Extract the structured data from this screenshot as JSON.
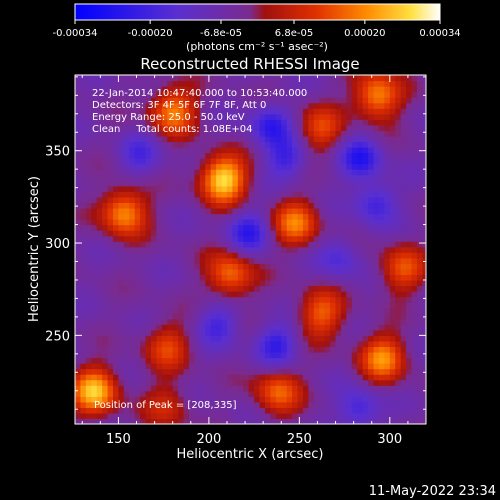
{
  "chart_data": {
    "type": "heatmap",
    "title": "Reconstructed RHESSI Image",
    "xlabel": "Heliocentric X (arcsec)",
    "ylabel": "Heliocentric Y (arcsec)",
    "xlim": [
      126,
      320
    ],
    "ylim": [
      202,
      391
    ],
    "x_ticks": [
      150,
      200,
      250,
      300
    ],
    "y_ticks": [
      250,
      300,
      350
    ],
    "colorbar": {
      "vmin": -0.00034,
      "vmax": 0.00034,
      "tick_values": [
        -0.00034,
        -0.0002,
        -6.8e-05,
        6.8e-05,
        0.0002,
        0.00034
      ],
      "tick_labels": [
        "-0.00034",
        "-0.00020",
        "-6.8e-05",
        "6.8e-05",
        "0.00020",
        "0.00034"
      ],
      "units_label": "(photons cm⁻² s⁻¹ asec⁻²)",
      "colormap": "blue-purple-red-orange-yellow-white"
    },
    "annotations": [
      "22-Jan-2014 10:47:40.000 to 10:53:40.000",
      "Detectors: 3F 4F 5F 6F 7F 8F, Att 0",
      "Energy Range: 25.0 - 50.0 keV",
      "Clean     Total counts: 1.08E+04"
    ],
    "peak_label": "Position of Peak = [208,335]",
    "peak": [
      208,
      335
    ],
    "bright_sources": [
      {
        "x": 208,
        "y": 335,
        "value": 0.00034
      },
      {
        "x": 137,
        "y": 220,
        "value": 0.0003
      },
      {
        "x": 153,
        "y": 317,
        "value": 0.00026
      },
      {
        "x": 248,
        "y": 311,
        "value": 0.00022
      },
      {
        "x": 180,
        "y": 372,
        "value": 0.00024
      },
      {
        "x": 293,
        "y": 380,
        "value": 0.00026
      },
      {
        "x": 212,
        "y": 283,
        "value": 0.00022
      },
      {
        "x": 262,
        "y": 262,
        "value": 0.0002
      },
      {
        "x": 238,
        "y": 220,
        "value": 0.0002
      },
      {
        "x": 296,
        "y": 238,
        "value": 0.00024
      },
      {
        "x": 307,
        "y": 286,
        "value": 0.00018
      },
      {
        "x": 177,
        "y": 244,
        "value": 0.00016
      },
      {
        "x": 262,
        "y": 362,
        "value": 0.00016
      },
      {
        "x": 177,
        "y": 212,
        "value": 0.00012
      }
    ],
    "negative_sources": [
      {
        "x": 234,
        "y": 364,
        "value": -0.00018
      },
      {
        "x": 284,
        "y": 346,
        "value": -0.0002
      },
      {
        "x": 243,
        "y": 346,
        "value": -0.00016
      },
      {
        "x": 222,
        "y": 306,
        "value": -0.00018
      },
      {
        "x": 162,
        "y": 348,
        "value": -0.00012
      },
      {
        "x": 237,
        "y": 245,
        "value": -0.00018
      },
      {
        "x": 292,
        "y": 322,
        "value": -0.00016
      },
      {
        "x": 205,
        "y": 256,
        "value": -0.00014
      },
      {
        "x": 272,
        "y": 292,
        "value": -0.00012
      },
      {
        "x": 283,
        "y": 210,
        "value": -0.00016
      }
    ]
  },
  "footer": {
    "timestamp": "11-May-2022 23:34"
  }
}
